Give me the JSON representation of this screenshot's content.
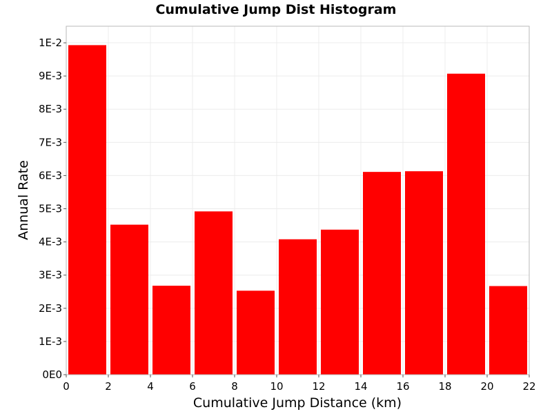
{
  "chart_data": {
    "type": "bar",
    "title": "Cumulative Jump Dist Histogram",
    "xlabel": "Cumulative Jump Distance (km)",
    "ylabel": "Annual Rate",
    "bin_width": 2,
    "x": [
      1,
      3,
      5,
      7,
      9,
      11,
      13,
      15,
      17,
      19,
      21
    ],
    "values": [
      0.00993,
      0.00452,
      0.00268,
      0.00492,
      0.00253,
      0.00408,
      0.00437,
      0.00611,
      0.00613,
      0.00907,
      0.00267
    ],
    "xlim": [
      0,
      22
    ],
    "ylim": [
      0,
      0.0105
    ],
    "x_ticks": [
      0,
      2,
      4,
      6,
      8,
      10,
      12,
      14,
      16,
      18,
      20,
      22
    ],
    "x_tick_labels": [
      "0",
      "2",
      "4",
      "6",
      "8",
      "10",
      "12",
      "14",
      "16",
      "18",
      "20",
      "22"
    ],
    "y_ticks": [
      0,
      0.001,
      0.002,
      0.003,
      0.004,
      0.005,
      0.006,
      0.007,
      0.008,
      0.009,
      0.01
    ],
    "y_tick_labels": [
      "0E0",
      "1E-3",
      "2E-3",
      "3E-3",
      "4E-3",
      "5E-3",
      "6E-3",
      "7E-3",
      "8E-3",
      "9E-3",
      "1E-2"
    ],
    "bar_color": "#ff0000",
    "grid": true,
    "legend": "none"
  }
}
